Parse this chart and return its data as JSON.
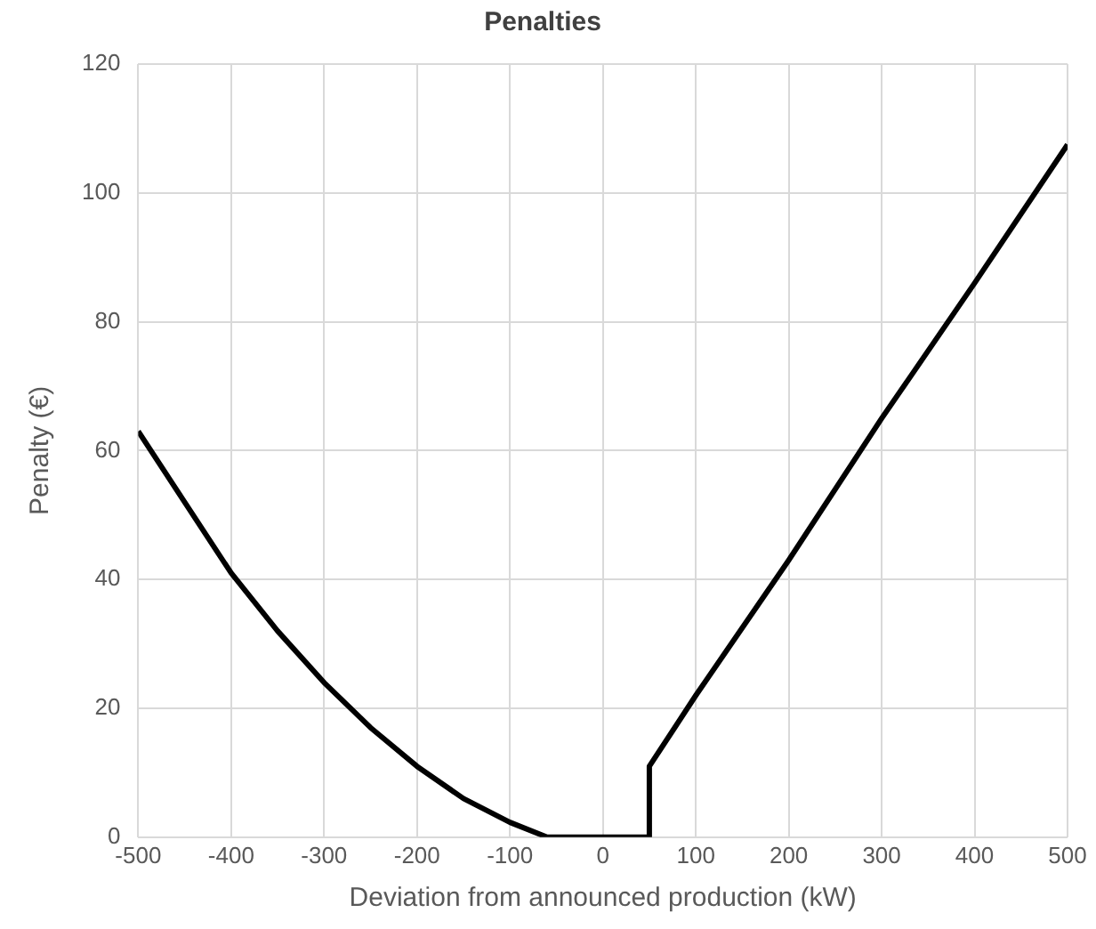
{
  "chart_data": {
    "type": "line",
    "title": "Penalties",
    "xlabel": "Deviation from announced production (kW)",
    "ylabel": "Penalty (€)",
    "x": [
      -500,
      -450,
      -400,
      -350,
      -300,
      -250,
      -200,
      -150,
      -100,
      -60,
      0,
      50,
      50,
      100,
      200,
      300,
      400,
      500
    ],
    "series": [
      {
        "color": "#000000",
        "values": [
          63,
          52,
          41,
          32,
          24,
          17,
          11,
          6,
          2.3,
          0,
          0,
          0,
          11,
          22,
          43,
          65,
          86,
          107.5
        ]
      }
    ],
    "xlim": [
      -500,
      500
    ],
    "xticks": [
      -500,
      -400,
      -300,
      -200,
      -100,
      0,
      100,
      200,
      300,
      400,
      500
    ],
    "ylim": [
      0,
      120
    ],
    "yticks": [
      0,
      20,
      40,
      60,
      80,
      100,
      120
    ],
    "grid": true,
    "legend": false,
    "marker": "none",
    "line_style": "solid"
  }
}
